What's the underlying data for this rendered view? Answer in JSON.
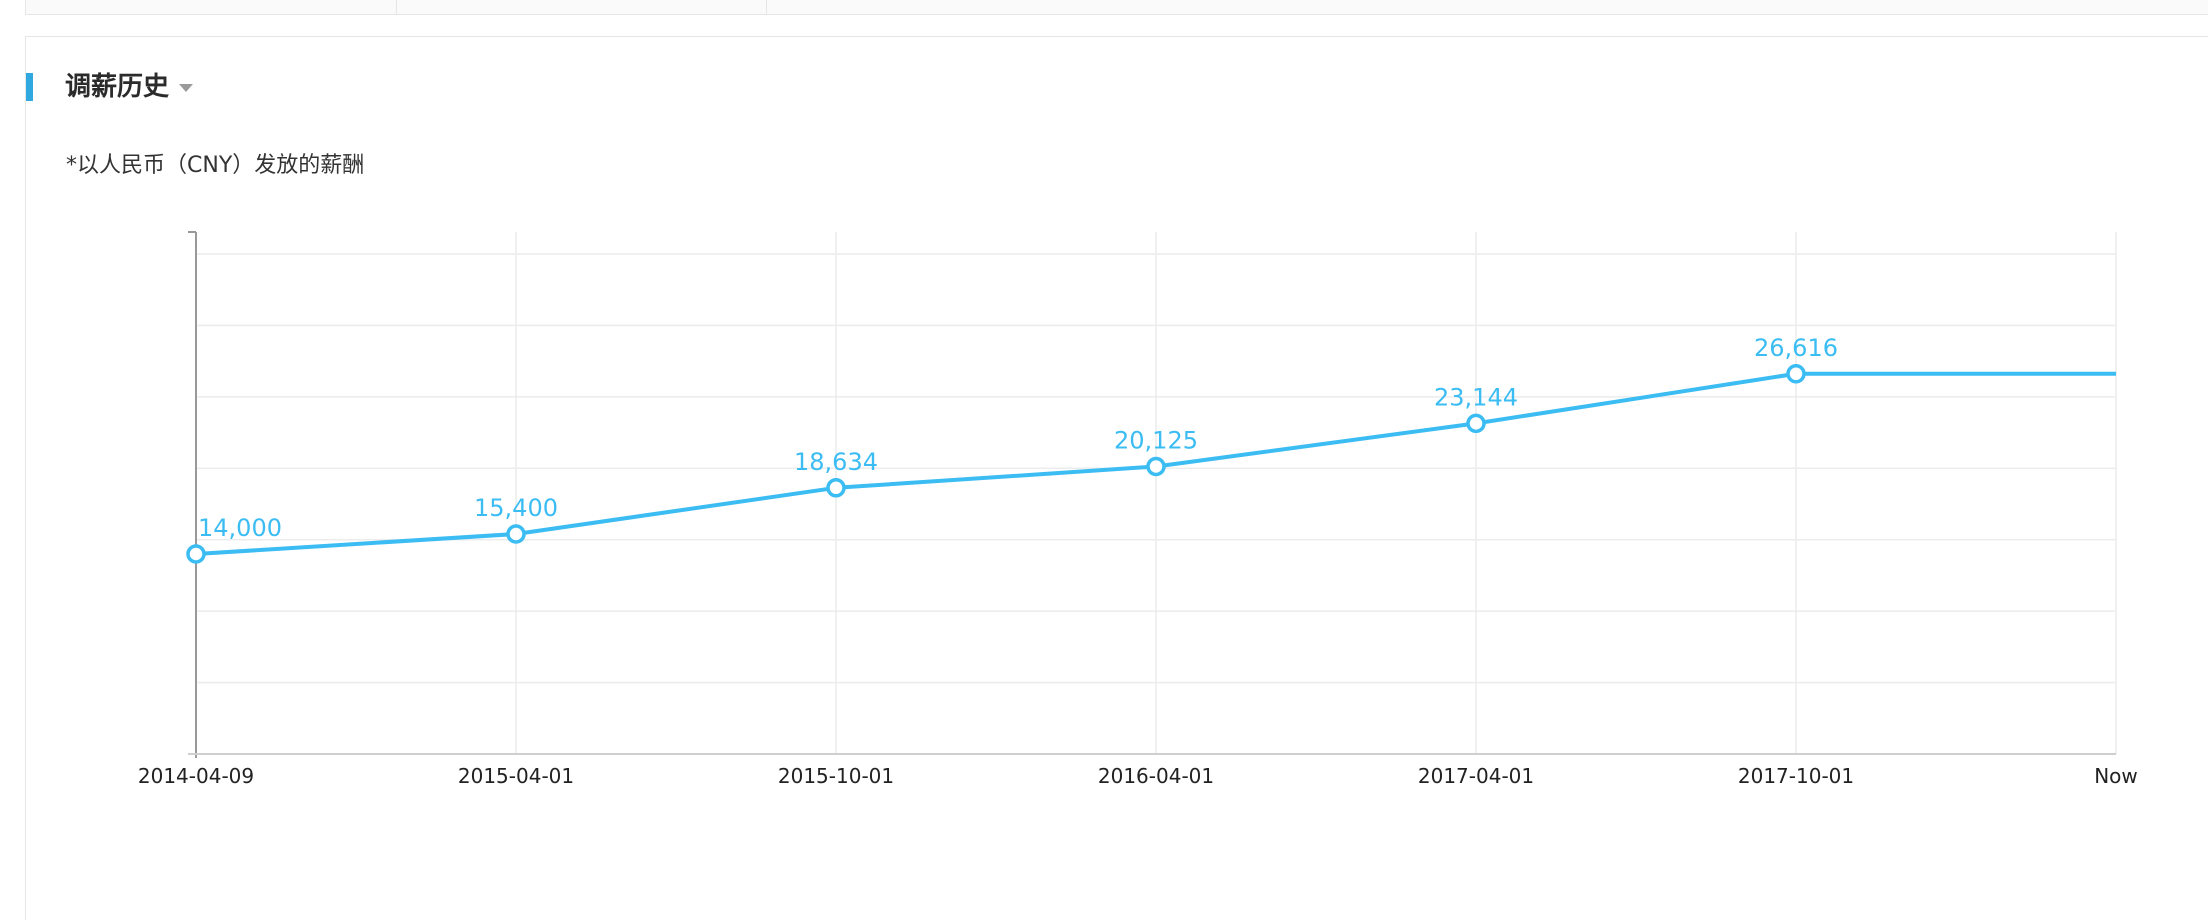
{
  "section": {
    "title": "调薪历史",
    "note": "*以人民币（CNY）发放的薪酬",
    "accent_color": "#2fa9e0"
  },
  "chart_data": {
    "type": "line",
    "title": "",
    "xlabel": "",
    "ylabel": "",
    "categories": [
      "2014-04-09",
      "2015-04-01",
      "2015-10-01",
      "2016-04-01",
      "2017-04-01",
      "2017-10-01",
      "Now"
    ],
    "series": [
      {
        "values": [
          14000,
          15400,
          18634,
          20125,
          23144,
          26616,
          26616
        ],
        "labels": [
          "14,000",
          "15,400",
          "18,634",
          "20,125",
          "23,144",
          "26,616",
          ""
        ],
        "markers": [
          true,
          true,
          true,
          true,
          true,
          true,
          false
        ],
        "color": "#3bbcf2"
      }
    ],
    "ylim": [
      0,
      35000
    ],
    "grid": true,
    "legend": "none",
    "y_tick_labels_shown": false
  }
}
